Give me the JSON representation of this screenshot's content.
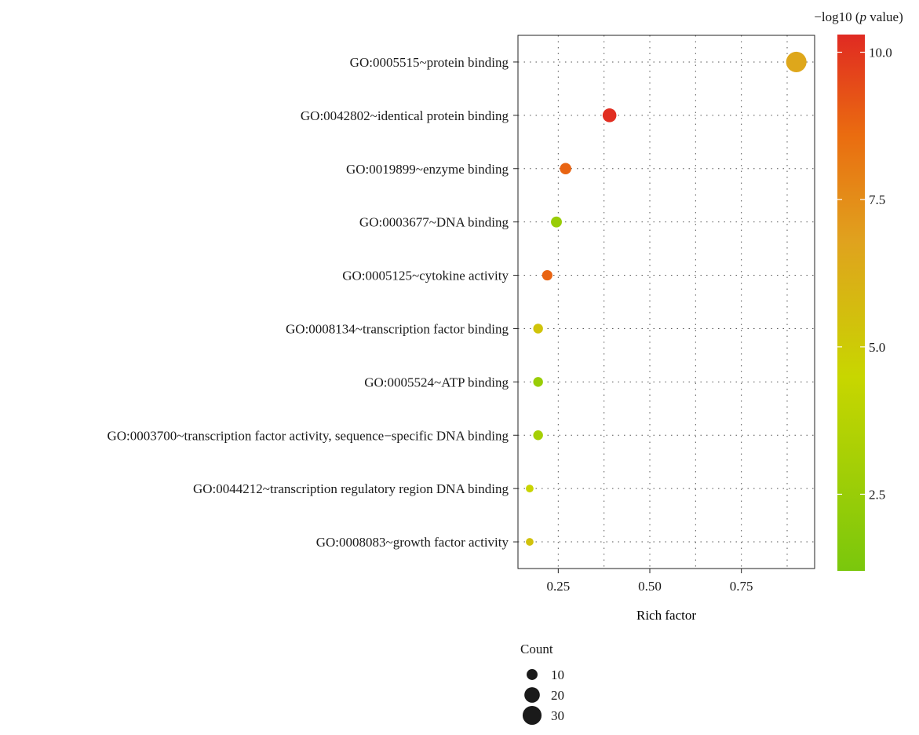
{
  "chart_data": {
    "type": "scatter",
    "subtype": "bubble",
    "xlabel": "Rich factor",
    "xlim": [
      0.14,
      0.95
    ],
    "xticks": [
      0.25,
      0.5,
      0.75
    ],
    "x_tick_labels": [
      "0.25",
      "0.50",
      "0.75"
    ],
    "grid": true,
    "categories": [
      "GO:0005515~protein binding",
      "GO:0042802~identical protein binding",
      "GO:0019899~enzyme binding",
      "GO:0003677~DNA binding",
      "GO:0005125~cytokine activity",
      "GO:0008134~transcription factor binding",
      "GO:0005524~ATP binding",
      "GO:0003700~transcription factor activity, sequence−specific DNA binding",
      "GO:0044212~transcription regulatory region DNA binding",
      "GO:0008083~growth factor activity"
    ],
    "points": [
      {
        "term": "GO:0005515~protein binding",
        "rich_factor": 0.9,
        "neg_log10_p": 6.6,
        "count": 35
      },
      {
        "term": "GO:0042802~identical protein binding",
        "rich_factor": 0.39,
        "neg_log10_p": 10.2,
        "count": 16
      },
      {
        "term": "GO:0019899~enzyme binding",
        "rich_factor": 0.27,
        "neg_log10_p": 8.8,
        "count": 11
      },
      {
        "term": "GO:0003677~DNA binding",
        "rich_factor": 0.245,
        "neg_log10_p": 2.5,
        "count": 10
      },
      {
        "term": "GO:0005125~cytokine activity",
        "rich_factor": 0.22,
        "neg_log10_p": 8.8,
        "count": 9
      },
      {
        "term": "GO:0008134~transcription factor binding",
        "rich_factor": 0.195,
        "neg_log10_p": 5.3,
        "count": 8
      },
      {
        "term": "GO:0005524~ATP binding",
        "rich_factor": 0.195,
        "neg_log10_p": 2.5,
        "count": 8
      },
      {
        "term": "GO:0003700~transcription factor activity, sequence−specific DNA binding",
        "rich_factor": 0.195,
        "neg_log10_p": 3.0,
        "count": 8
      },
      {
        "term": "GO:0044212~transcription regulatory region DNA binding",
        "rich_factor": 0.172,
        "neg_log10_p": 4.6,
        "count": 5
      },
      {
        "term": "GO:0008083~growth factor activity",
        "rich_factor": 0.172,
        "neg_log10_p": 5.4,
        "count": 5
      }
    ],
    "color_scale": {
      "title": "−log10 (p value)",
      "title_prefix": "−log10 (",
      "title_italic": "p",
      "title_suffix": " value)",
      "range": [
        1.2,
        10.3
      ],
      "ticks": [
        2.5,
        5.0,
        7.5,
        10.0
      ],
      "tick_labels": [
        "2.5",
        "5.0",
        "7.5",
        "10.0"
      ],
      "stops": [
        {
          "value": 1.2,
          "color": "#7ac70c"
        },
        {
          "value": 4.5,
          "color": "#c8d600"
        },
        {
          "value": 6.8,
          "color": "#e0a21e"
        },
        {
          "value": 8.6,
          "color": "#ea6c10"
        },
        {
          "value": 10.3,
          "color": "#e02a22"
        }
      ]
    },
    "size_legend": {
      "title": "Count",
      "values": [
        10,
        20,
        30
      ],
      "labels": [
        "10",
        "20",
        "30"
      ],
      "color": "#1a1a1a"
    }
  }
}
